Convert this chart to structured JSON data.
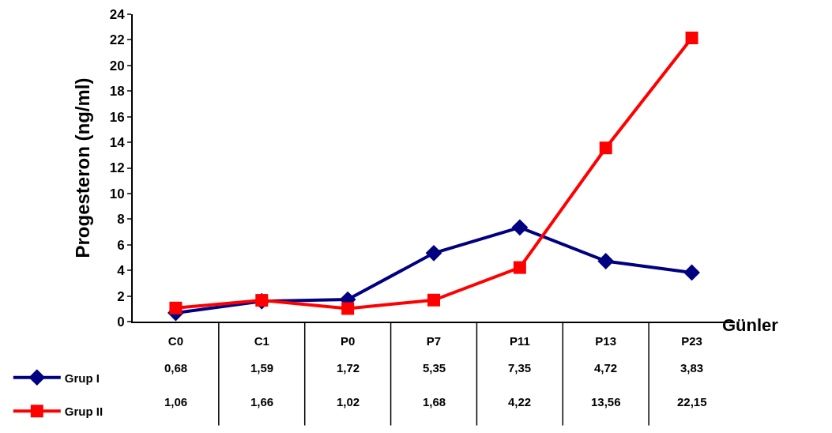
{
  "chart_data": {
    "type": "line",
    "ylabel": "Progesteron (ng/ml)",
    "xlabel": "Günler",
    "categories": [
      "C0",
      "C1",
      "P0",
      "P7",
      "P11",
      "P13",
      "P23"
    ],
    "series": [
      {
        "name": "Grup I",
        "color": "#000080",
        "marker": "diamond",
        "values": [
          0.68,
          1.59,
          1.72,
          5.35,
          7.35,
          4.72,
          3.83
        ],
        "value_labels": [
          "0,68",
          "1,59",
          "1,72",
          "5,35",
          "7,35",
          "4,72",
          "3,83"
        ]
      },
      {
        "name": "Grup II",
        "color": "#ff0000",
        "marker": "square",
        "values": [
          1.06,
          1.66,
          1.02,
          1.68,
          4.22,
          13.56,
          22.15
        ],
        "value_labels": [
          "1,06",
          "1,66",
          "1,02",
          "1,68",
          "4,22",
          "13,56",
          "22,15"
        ]
      }
    ],
    "ylim": [
      0,
      24
    ],
    "yticks": [
      0,
      2,
      4,
      6,
      8,
      10,
      12,
      14,
      16,
      18,
      20,
      22,
      24
    ],
    "grid": false,
    "legend": "bottom left"
  }
}
